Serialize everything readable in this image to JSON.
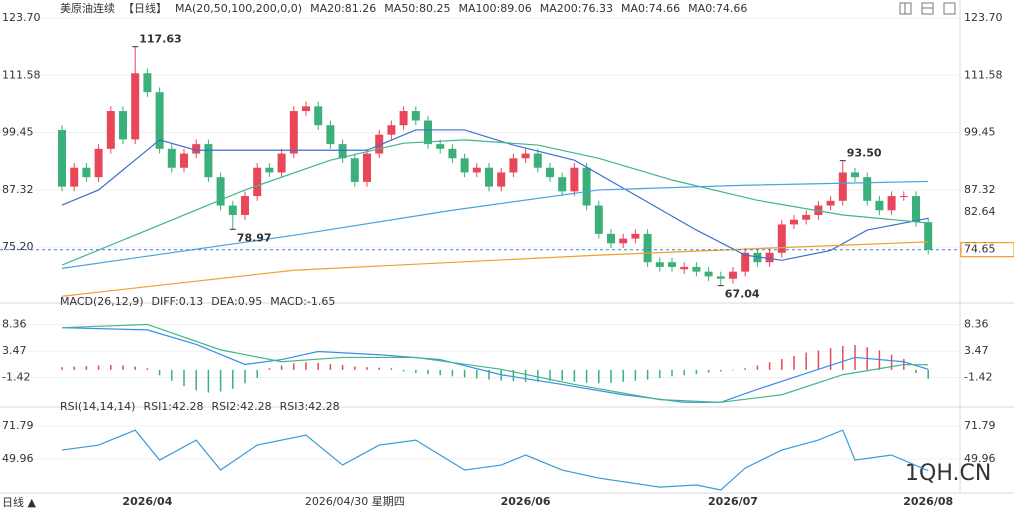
{
  "chart_data": [
    {
      "type": "candlestick",
      "title": "美原油连续",
      "period": "【日线】",
      "ma_label": "MA(20,50,100,200,0,0)",
      "open": [
        100,
        88,
        92,
        90,
        96,
        104,
        98,
        112,
        108,
        96,
        92,
        95,
        97,
        90,
        84,
        82,
        86,
        92,
        91,
        95,
        104,
        105,
        101,
        97,
        94,
        89,
        95,
        99,
        101,
        104,
        102,
        97,
        96,
        94,
        91,
        92,
        88,
        91,
        94,
        95,
        92,
        90,
        87,
        92,
        84,
        78,
        76,
        77,
        78,
        72,
        72,
        70.5,
        71,
        70,
        69,
        68.5,
        70,
        74,
        72,
        74,
        80,
        81,
        82,
        84,
        85,
        91,
        90,
        85,
        83,
        86,
        86,
        80.5
      ],
      "high": [
        101,
        93,
        93,
        97,
        105,
        105,
        117.63,
        113,
        109,
        97,
        96,
        98,
        98,
        91,
        85,
        87,
        93,
        93,
        96,
        105,
        106,
        106,
        102,
        98,
        95,
        96,
        100,
        102,
        105,
        105,
        103,
        98,
        97,
        95,
        93,
        93,
        92,
        95,
        96,
        96,
        93,
        91,
        93,
        93,
        85,
        79,
        78,
        79,
        79,
        73,
        73,
        72,
        72,
        71,
        70,
        71,
        75,
        75,
        75,
        81,
        82,
        83,
        85,
        86,
        93.5,
        92,
        91,
        86,
        87,
        87,
        87,
        81.5
      ],
      "low": [
        87,
        87,
        89,
        89,
        95,
        97,
        97,
        107,
        95,
        91,
        91,
        94,
        89,
        83,
        78.97,
        81,
        85,
        90,
        90,
        94,
        103,
        100,
        96,
        93,
        88,
        88,
        94,
        98,
        100,
        101,
        96,
        95,
        93,
        90,
        90,
        87,
        87,
        90,
        93,
        91,
        89,
        86,
        86,
        83,
        77,
        75,
        75,
        76,
        71,
        70,
        70,
        69.5,
        69,
        68,
        67.04,
        67.5,
        69,
        71,
        71,
        73,
        79,
        80,
        81,
        83,
        84,
        89,
        84,
        82,
        82,
        85,
        79.5,
        73.65
      ],
      "close": [
        88,
        92,
        90,
        96,
        104,
        98,
        112,
        108,
        96,
        92,
        95,
        97,
        90,
        84,
        82,
        86,
        92,
        91,
        95,
        104,
        105,
        101,
        97,
        94,
        89,
        95,
        99,
        101,
        104,
        102,
        97,
        96,
        94,
        91,
        92,
        88,
        91,
        94,
        95,
        92,
        90,
        87,
        92,
        84,
        78,
        76,
        77,
        78,
        72,
        71,
        71,
        71,
        70,
        69,
        68.5,
        70,
        74,
        72,
        74,
        80,
        81,
        82,
        84,
        85,
        91,
        90,
        85,
        83,
        86,
        86,
        80.5,
        74.65
      ],
      "up_color": "#e8475a",
      "down_color": "#3bb07a",
      "series": [
        {
          "name": "MA20:81.26",
          "color": "#3d6fd1",
          "x": [
            0,
            3,
            8,
            11,
            15,
            20,
            25,
            29,
            33,
            37,
            42,
            47,
            52,
            56,
            59,
            63,
            66,
            71
          ],
          "values": [
            84.1,
            87.3,
            97.9,
            95.7,
            95.7,
            95.7,
            95.7,
            100,
            100,
            96.8,
            93.6,
            86.2,
            78.8,
            73.5,
            72.4,
            74.5,
            78.8,
            81.3
          ]
        },
        {
          "name": "MA50:80.25",
          "color": "#43b58a",
          "x": [
            0,
            7,
            15,
            22,
            28,
            33,
            39,
            44,
            50,
            57,
            64,
            71
          ],
          "values": [
            71.4,
            78.8,
            87.3,
            93.6,
            97.2,
            97.9,
            96.8,
            94,
            89.4,
            85.1,
            82,
            80.3
          ]
        },
        {
          "name": "MA100:89.06",
          "color": "#4aa3df",
          "x": [
            0,
            19,
            32,
            44,
            56,
            71
          ],
          "values": [
            70.7,
            77.7,
            83,
            87.3,
            88.3,
            89.1
          ]
        },
        {
          "name": "MA200:76.33",
          "color": "#f0a030",
          "x": [
            0,
            19,
            44,
            60,
            71
          ],
          "values": [
            64.8,
            70.3,
            73.5,
            75.2,
            76.3
          ]
        }
      ],
      "legend_extra": [
        {
          "label": "MA0:74.66",
          "color": "#d58fd8"
        },
        {
          "label": "MA0:74.66",
          "color": "#6fc0ec"
        }
      ],
      "ylim": [
        64,
        123.7
      ],
      "yticks": [
        {
          "value": 123.7,
          "label": "123.70"
        },
        111.58,
        99.45,
        87.32,
        {
          "value": 75.2,
          "label": "75.20"
        }
      ],
      "annotations": [
        {
          "x": 6,
          "value": 117.63
        },
        {
          "x": 14,
          "value": 78.97
        },
        {
          "x": 64,
          "value": 93.5,
          "label": "93.50"
        },
        {
          "x": 54,
          "value": 67.04
        }
      ],
      "right_labels": [
        {
          "value": 82.64,
          "color": "#f08c00"
        },
        {
          "value": 74.65,
          "color": "#f08c00",
          "boxed": true
        }
      ],
      "last_price_line": 74.65,
      "xticks": [
        {
          "value": 7,
          "label": "2026/04"
        },
        {
          "value": 38,
          "label": "2026/06"
        },
        {
          "value": 55,
          "label": "2026/07"
        },
        {
          "value": 71,
          "label": "2026/08"
        }
      ],
      "crosshair_label": {
        "value": 24,
        "label": "2026/04/30 星期四"
      },
      "period_button": "日线 ▲",
      "watermark": "1QH.CN"
    },
    {
      "type": "macd",
      "title": "MACD(26,12,9)",
      "series": [
        {
          "name": "DIFF:0.13",
          "color": "#3a8ee6",
          "x": [
            0,
            7,
            11,
            15,
            18,
            21,
            26,
            31,
            36,
            41,
            46,
            51,
            54,
            57,
            62,
            65,
            69,
            71
          ],
          "values": [
            7.8,
            7.4,
            4.7,
            1,
            1.9,
            3.4,
            2.8,
            1.9,
            -0.9,
            -2.7,
            -4.6,
            -6,
            -6,
            -3.6,
            0.1,
            2.3,
            1.5,
            0.1
          ]
        },
        {
          "name": "DEA:0.95",
          "color": "#43b58a",
          "x": [
            0,
            7,
            13,
            18,
            23,
            29,
            36,
            42,
            49,
            54,
            59,
            64,
            69,
            71
          ],
          "values": [
            7.8,
            8.4,
            3.7,
            1.5,
            2.3,
            2.3,
            0.1,
            -2.7,
            -5.5,
            -6,
            -4.6,
            -0.9,
            0.98,
            0.95
          ]
        }
      ],
      "histogram": {
        "name": "MACD:-1.65",
        "color": "#3a8ee6",
        "up_color": "#e8475a",
        "down_color": "#3bb07a",
        "values": [
          0.5,
          0.6,
          0.7,
          0.8,
          0.9,
          0.8,
          0.6,
          0.3,
          -1,
          -2,
          -3,
          -3.8,
          -4.2,
          -4,
          -3.5,
          -2.5,
          -1.5,
          0.3,
          0.8,
          1.2,
          1.4,
          1.3,
          1.1,
          0.9,
          0.6,
          0.5,
          0.4,
          0.3,
          -0.3,
          -0.6,
          -0.8,
          -1,
          -1.2,
          -1.4,
          -1.6,
          -1.8,
          -2,
          -2.1,
          -2.2,
          -2.2,
          -2.1,
          -2,
          -2.2,
          -2.4,
          -2.5,
          -2.4,
          -2.2,
          -2,
          -1.8,
          -1.5,
          -1.2,
          -1,
          -0.8,
          -0.5,
          -0.3,
          -0.1,
          0.3,
          0.8,
          1.4,
          2,
          2.6,
          3.2,
          3.6,
          4,
          4.4,
          4.6,
          4.2,
          3.6,
          2.8,
          2,
          -0.6,
          -1.65
        ]
      },
      "ylim": [
        -6.5,
        12
      ],
      "yticks": [
        8.36,
        3.47,
        -1.42
      ]
    },
    {
      "type": "rsi",
      "title": "RSI(14,14,14)",
      "series": [
        {
          "name": "RSI1:42.28",
          "color": "#3a9ad9",
          "x": [
            0,
            3,
            6,
            8,
            11,
            13,
            16,
            20,
            23,
            26,
            29,
            33,
            36,
            38,
            41,
            44,
            49,
            52,
            54,
            56,
            59,
            62,
            64,
            65,
            68,
            71
          ],
          "values": [
            55.9,
            59.2,
            69.1,
            49.3,
            62.5,
            42.7,
            59.2,
            65.8,
            46,
            59.2,
            62.5,
            42.7,
            46,
            52.6,
            42.7,
            37.4,
            31.4,
            32.8,
            29.5,
            44,
            55.9,
            62.5,
            69.1,
            49.3,
            52.6,
            42.28
          ]
        }
      ],
      "legend_extra": [
        {
          "label": "RSI2:42.28",
          "color": "#43b58a"
        },
        {
          "label": "RSI3:42.28",
          "color": "#6fc0ec"
        }
      ],
      "ylim": [
        29.5,
        82.4
      ],
      "yticks": [
        71.79,
        49.96
      ]
    }
  ]
}
